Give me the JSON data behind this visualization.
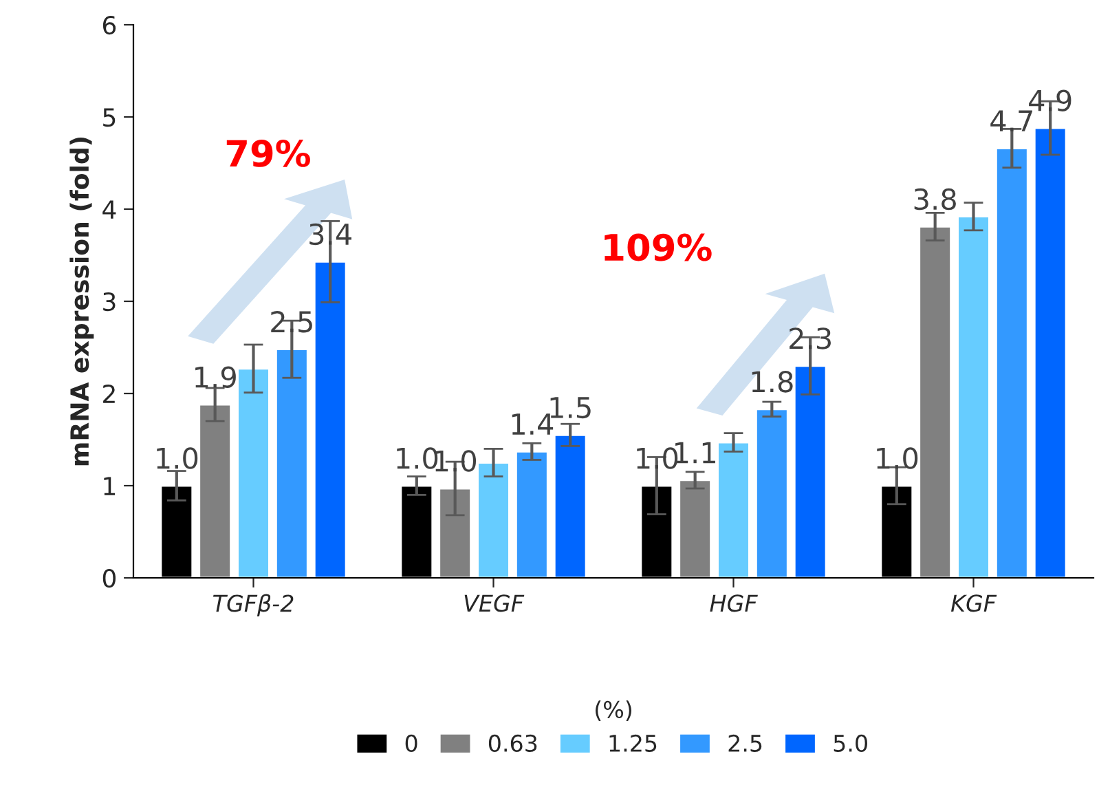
{
  "chart_data": {
    "type": "bar",
    "ylabel": "mRNA expression (fold)",
    "legend_title": "(%)",
    "categories": [
      "TGFβ-2",
      "VEGF",
      "HGF",
      "KGF"
    ],
    "series": [
      {
        "name": "0",
        "color": "#000000",
        "values": [
          1.0,
          1.0,
          1.0,
          1.0
        ],
        "errors": [
          0.16,
          0.1,
          0.31,
          0.2
        ],
        "value_labels": [
          "1.0",
          "1.0",
          "1.0",
          "1.0"
        ]
      },
      {
        "name": "0.63",
        "color": "#808080",
        "values": [
          1.88,
          0.97,
          1.06,
          3.81
        ],
        "errors": [
          0.18,
          0.29,
          0.09,
          0.15
        ],
        "value_labels": [
          "1.9",
          "1.0",
          "1.1",
          "3.8"
        ]
      },
      {
        "name": "1.25",
        "color": "#66ccff",
        "values": [
          2.27,
          1.25,
          1.47,
          3.92
        ],
        "errors": [
          0.26,
          0.15,
          0.1,
          0.15
        ],
        "value_labels": [
          null,
          null,
          null,
          null
        ]
      },
      {
        "name": "2.5",
        "color": "#3399ff",
        "values": [
          2.48,
          1.37,
          1.83,
          4.66
        ],
        "errors": [
          0.31,
          0.09,
          0.08,
          0.21
        ],
        "value_labels": [
          "2.5",
          "1.4",
          "1.8",
          "4.7"
        ]
      },
      {
        "name": "5.0",
        "color": "#0066ff",
        "values": [
          3.43,
          1.55,
          2.3,
          4.88
        ],
        "errors": [
          0.44,
          0.12,
          0.31,
          0.29
        ],
        "value_labels": [
          "3.4",
          "1.5",
          "2.3",
          "4.9"
        ]
      }
    ],
    "ylim": [
      0,
      6
    ],
    "yticks": [
      0,
      1,
      2,
      3,
      4,
      5,
      6
    ],
    "grid": false,
    "legend": "bottom",
    "annotations": [
      "79%",
      "109%"
    ]
  }
}
